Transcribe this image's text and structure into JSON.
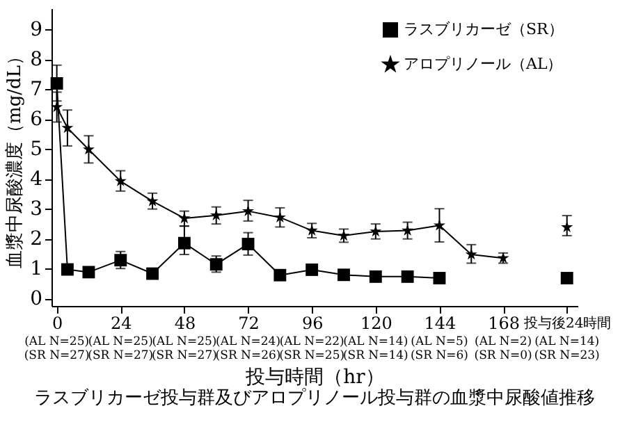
{
  "chart_data": {
    "type": "line",
    "title": "ラスブリカーゼ投与群及びアロプリノール投与群の血漿中尿酸値推移",
    "xlabel": "投与時間（hr）",
    "ylabel": "血漿中尿酸濃度（mg/dL）",
    "x": [
      0,
      4,
      12,
      24,
      36,
      48,
      60,
      72,
      84,
      96,
      108,
      120,
      132,
      144,
      156,
      168,
      180,
      192
    ],
    "series": [
      {
        "name": "ラスブリカーゼ（SR）",
        "color": "#000000",
        "marker": "square",
        "values": [
          7.19,
          0.97,
          0.88,
          1.28,
          0.83,
          1.85,
          1.14,
          1.82,
          0.78,
          0.96,
          0.79,
          0.73,
          0.73,
          0.68,
          null,
          null,
          null,
          0.68
        ],
        "errors": [
          [
            6.6,
            7.8
          ],
          null,
          null,
          [
            1.0,
            1.57
          ],
          null,
          [
            1.47,
            2.42
          ],
          [
            0.88,
            1.42
          ],
          [
            1.45,
            2.2
          ],
          null,
          [
            0.8,
            1.12
          ],
          null,
          null,
          [
            0.6,
            0.88
          ],
          null,
          null,
          null,
          null,
          null
        ]
      },
      {
        "name": "アロプリノール（AL）",
        "color": "#000000",
        "marker": "star",
        "values": [
          6.4,
          5.7,
          4.98,
          3.92,
          3.25,
          2.68,
          2.78,
          2.92,
          2.71,
          2.27,
          2.1,
          2.24,
          2.27,
          2.44,
          1.47,
          1.35,
          null,
          2.38
        ],
        "errors": [
          [
            5.9,
            6.9
          ],
          [
            5.1,
            6.3
          ],
          [
            4.53,
            5.44
          ],
          [
            3.59,
            4.27
          ],
          [
            2.99,
            3.52
          ],
          [
            2.42,
            2.92
          ],
          [
            2.49,
            3.06
          ],
          [
            2.59,
            3.28
          ],
          [
            2.39,
            3.03
          ],
          [
            2.03,
            2.51
          ],
          [
            1.88,
            2.32
          ],
          [
            1.99,
            2.49
          ],
          [
            1.99,
            2.55
          ],
          [
            1.89,
            3.0
          ],
          [
            1.18,
            1.8
          ],
          [
            1.18,
            1.52
          ],
          null,
          [
            2.1,
            2.77
          ]
        ]
      }
    ],
    "xlim": [
      -2,
      196
    ],
    "ylim": [
      -0.25,
      9.7
    ],
    "xticks": [
      0,
      24,
      48,
      72,
      96,
      120,
      144,
      168,
      {
        "value": 192,
        "label": "投与後24時間"
      }
    ],
    "annotations": [
      "(AL N=25)",
      "(SR N=27)",
      "(AL N=25)",
      "(SR N=27)",
      "(AL N=25)",
      "(SR N=27)",
      "(AL N=24)",
      "(SR N=26)",
      "(AL N=22)",
      "(SR N=25)",
      "(AL N=14)",
      "(SR N=14)",
      "(AL N=5)",
      "(SR N=6)",
      "(AL N=2)",
      "(SR N=0)",
      "(AL N=14)",
      "(SR N=23)"
    ],
    "yticks": [
      0,
      1,
      2,
      3,
      4,
      5,
      6,
      7,
      8,
      9
    ],
    "legend": "top right",
    "grid": false,
    "line_style": "solid"
  }
}
